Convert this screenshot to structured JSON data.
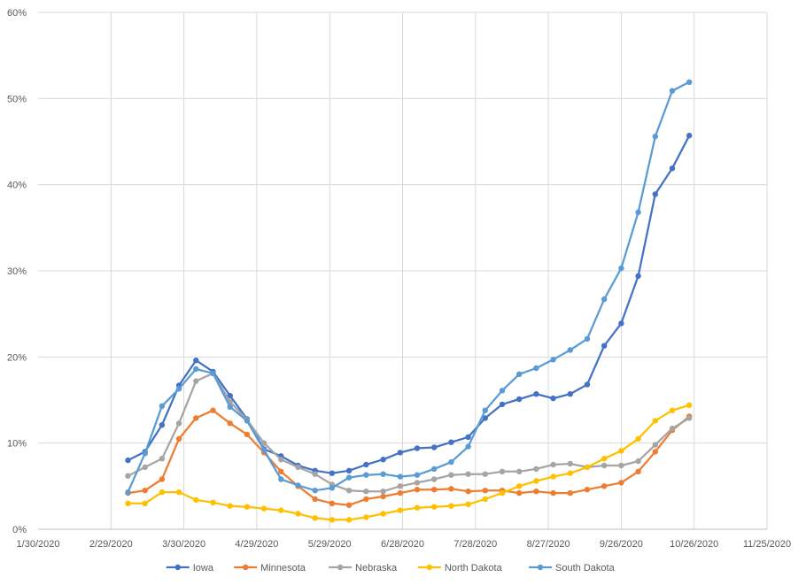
{
  "chart_data": {
    "type": "line",
    "title": "",
    "xlabel": "",
    "ylabel": "",
    "x_ticks": [
      "1/30/2020",
      "2/29/2020",
      "3/30/2020",
      "4/29/2020",
      "5/29/2020",
      "6/28/2020",
      "7/28/2020",
      "8/27/2020",
      "9/26/2020",
      "10/26/2020",
      "11/25/2020"
    ],
    "y_ticks": [
      "0%",
      "10%",
      "20%",
      "30%",
      "40%",
      "50%",
      "60%"
    ],
    "xlim": [
      "2020-01-30",
      "2020-11-25"
    ],
    "ylim": [
      0,
      60
    ],
    "grid": true,
    "legend_position": "bottom",
    "x": [
      "2020-03-07",
      "2020-03-14",
      "2020-03-21",
      "2020-03-28",
      "2020-04-04",
      "2020-04-11",
      "2020-04-18",
      "2020-04-25",
      "2020-05-02",
      "2020-05-09",
      "2020-05-16",
      "2020-05-23",
      "2020-05-30",
      "2020-06-06",
      "2020-06-13",
      "2020-06-20",
      "2020-06-27",
      "2020-07-04",
      "2020-07-11",
      "2020-07-18",
      "2020-07-25",
      "2020-08-01",
      "2020-08-08",
      "2020-08-15",
      "2020-08-22",
      "2020-08-29",
      "2020-09-05",
      "2020-09-12",
      "2020-09-19",
      "2020-09-26",
      "2020-10-03",
      "2020-10-10",
      "2020-10-17",
      "2020-10-24"
    ],
    "series": [
      {
        "name": "Iowa",
        "color": "#4472C4",
        "values": [
          8.0,
          9.0,
          12.1,
          16.7,
          19.6,
          18.3,
          15.5,
          12.8,
          9.3,
          8.5,
          7.4,
          6.8,
          6.5,
          6.8,
          7.5,
          8.1,
          8.9,
          9.4,
          9.5,
          10.1,
          10.7,
          12.9,
          14.5,
          15.1,
          15.7,
          15.2,
          15.7,
          16.8,
          21.3,
          23.9,
          29.4,
          38.9,
          41.9,
          45.7
        ]
      },
      {
        "name": "Minnesota",
        "color": "#ED7D31",
        "values": [
          4.2,
          4.5,
          5.8,
          10.5,
          12.9,
          13.8,
          12.3,
          11.0,
          8.9,
          6.7,
          5.0,
          3.5,
          3.0,
          2.8,
          3.5,
          3.8,
          4.2,
          4.6,
          4.6,
          4.7,
          4.4,
          4.5,
          4.5,
          4.2,
          4.4,
          4.2,
          4.2,
          4.6,
          5.0,
          5.4,
          6.7,
          9.0,
          11.5,
          13.1
        ]
      },
      {
        "name": "Nebraska",
        "color": "#A5A5A5",
        "values": [
          6.2,
          7.2,
          8.2,
          12.3,
          17.2,
          18.1,
          14.8,
          12.7,
          10.0,
          8.1,
          7.2,
          6.4,
          5.2,
          4.5,
          4.4,
          4.4,
          5.0,
          5.4,
          5.8,
          6.3,
          6.4,
          6.4,
          6.7,
          6.7,
          7.0,
          7.5,
          7.6,
          7.2,
          7.4,
          7.4,
          7.9,
          9.8,
          11.7,
          12.9
        ]
      },
      {
        "name": "North Dakota",
        "color": "#FFC000",
        "values": [
          3.0,
          3.0,
          4.3,
          4.3,
          3.4,
          3.1,
          2.7,
          2.6,
          2.4,
          2.2,
          1.8,
          1.3,
          1.1,
          1.1,
          1.4,
          1.8,
          2.2,
          2.5,
          2.6,
          2.7,
          2.9,
          3.5,
          4.2,
          5.0,
          5.6,
          6.1,
          6.5,
          7.2,
          8.2,
          9.1,
          10.5,
          12.6,
          13.8,
          14.4
        ]
      },
      {
        "name": "South Dakota",
        "color": "#5B9BD5",
        "values": [
          4.3,
          8.8,
          14.3,
          16.3,
          18.6,
          18.1,
          14.2,
          12.6,
          9.2,
          5.8,
          5.1,
          4.5,
          4.8,
          6.0,
          6.3,
          6.4,
          6.1,
          6.3,
          7.0,
          7.8,
          9.6,
          13.8,
          16.1,
          18.0,
          18.7,
          19.7,
          20.8,
          22.1,
          26.7,
          30.3,
          36.8,
          45.6,
          50.9,
          51.9
        ]
      }
    ]
  }
}
